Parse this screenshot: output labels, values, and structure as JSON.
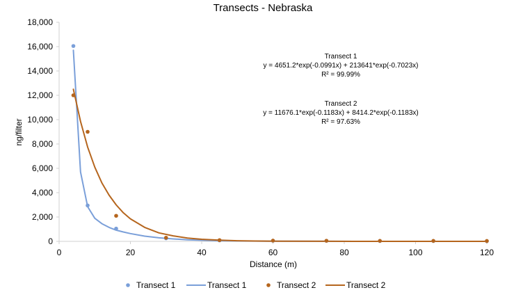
{
  "chart_data": {
    "type": "scatter",
    "title": "Transects - Nebraska",
    "xlabel": "Distance (m)",
    "ylabel": "ng/filter",
    "xlim": [
      0,
      120
    ],
    "ylim": [
      0,
      18000
    ],
    "xticks": [
      0,
      20,
      40,
      60,
      80,
      100,
      120
    ],
    "yticks": [
      0,
      2000,
      4000,
      6000,
      8000,
      10000,
      12000,
      14000,
      16000,
      18000
    ],
    "xtick_labels": [
      "0",
      "20",
      "40",
      "60",
      "80",
      "100",
      "120"
    ],
    "ytick_labels": [
      "0",
      "2,000",
      "4,000",
      "6,000",
      "8,000",
      "10,000",
      "12,000",
      "14,000",
      "16,000",
      "18,000"
    ],
    "grid": false,
    "legend_position": "bottom",
    "series": [
      {
        "name": "Transect 1",
        "kind": "points",
        "color": "#7a9fd9",
        "x": [
          4,
          8,
          16,
          30,
          45,
          60,
          75,
          90,
          105,
          120
        ],
        "y": [
          16050,
          2950,
          1050,
          250,
          80,
          50,
          40,
          30,
          25,
          20
        ]
      },
      {
        "name": "Transect 1",
        "kind": "line",
        "color": "#7a9fd9",
        "x": [
          4,
          6,
          8,
          10,
          12,
          14,
          16,
          18,
          20,
          24,
          28,
          32,
          36,
          40,
          45,
          50,
          55,
          60,
          75,
          90,
          105,
          120
        ],
        "y": [
          15700,
          5700,
          2850,
          1900,
          1450,
          1150,
          920,
          770,
          640,
          430,
          290,
          200,
          130,
          90,
          50,
          30,
          20,
          10,
          5,
          0,
          0,
          0
        ]
      },
      {
        "name": "Transect 2",
        "kind": "points",
        "color": "#b5651d",
        "x": [
          4,
          8,
          16,
          30,
          45,
          60,
          75,
          90,
          105,
          120
        ],
        "y": [
          12000,
          9000,
          2100,
          300,
          100,
          60,
          50,
          40,
          40,
          30
        ]
      },
      {
        "name": "Transect 2",
        "kind": "line",
        "color": "#b5651d",
        "x": [
          4,
          6,
          8,
          10,
          12,
          14,
          16,
          18,
          20,
          24,
          28,
          32,
          36,
          40,
          45,
          50,
          55,
          60,
          75,
          90,
          105,
          120
        ],
        "y": [
          12500,
          9850,
          7750,
          6100,
          4800,
          3800,
          3000,
          2350,
          1850,
          1150,
          700,
          450,
          270,
          170,
          95,
          50,
          30,
          15,
          3,
          0,
          0,
          0
        ]
      }
    ],
    "annotations": [
      {
        "lines": [
          "Transect 1",
          "y = 4651.2*exp(-0.0991x) + 213641*exp(-0.7023x)",
          "R² = 99.99%"
        ]
      },
      {
        "lines": [
          "Transect 2",
          "y = 11676.1*exp(-0.1183x) + 8414.2*exp(-0.1183x)",
          "R² = 97.63%"
        ]
      }
    ],
    "legend": [
      {
        "label": "Transect 1",
        "kind": "marker",
        "color": "#7a9fd9"
      },
      {
        "label": "Transect 1",
        "kind": "line",
        "color": "#7a9fd9"
      },
      {
        "label": "Transect 2",
        "kind": "marker",
        "color": "#b5651d"
      },
      {
        "label": "Transect 2",
        "kind": "line",
        "color": "#b5651d"
      }
    ]
  }
}
